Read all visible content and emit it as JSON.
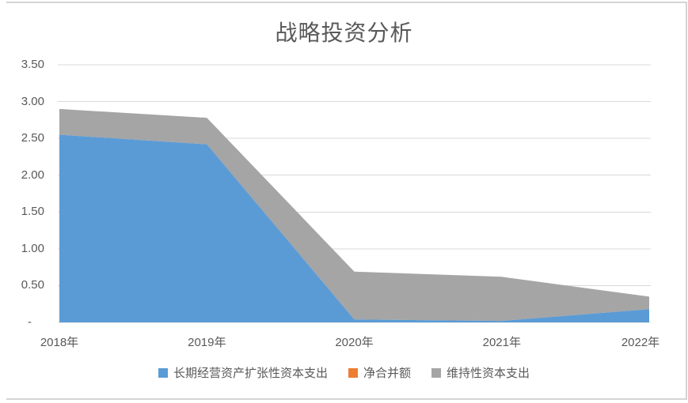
{
  "chart_data": {
    "type": "area",
    "stacked": true,
    "title": "战略投资分析",
    "categories": [
      "2018年",
      "2019年",
      "2020年",
      "2021年",
      "2022年"
    ],
    "series": [
      {
        "name": "长期经营资产扩张性资本支出",
        "color": "#5b9bd5",
        "values": [
          2.55,
          2.42,
          0.04,
          0.02,
          0.18
        ]
      },
      {
        "name": "净合并额",
        "color": "#ed7d31",
        "values": [
          0,
          0,
          0,
          0,
          0
        ]
      },
      {
        "name": "维持性资本支出",
        "color": "#a5a5a5",
        "values": [
          0.35,
          0.36,
          0.65,
          0.6,
          0.17
        ]
      }
    ],
    "y_axis": {
      "min": 0,
      "max": 3.5,
      "tick_interval": 0.5,
      "tick_labels_top_to_bottom": [
        "3.50",
        "3.00",
        "2.50",
        "2.00",
        "1.50",
        "1.00",
        "0.50",
        "-"
      ]
    },
    "grid": true,
    "legend_position": "bottom",
    "colors": {
      "gridline": "#d9d9d9",
      "axis_line": "#d9d9d9",
      "text": "#595959",
      "frame_border": "#d4d4d4",
      "background": "#ffffff"
    }
  }
}
